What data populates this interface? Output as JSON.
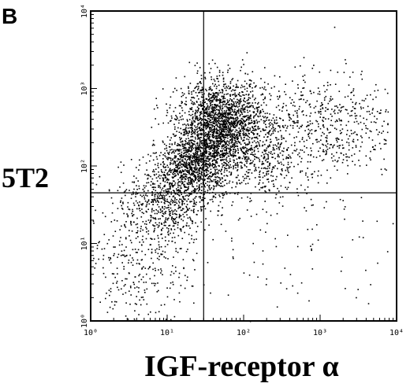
{
  "panel_label": "B",
  "chart_data": {
    "type": "scatter",
    "title": "",
    "xlabel": "IGF-receptor α",
    "ylabel": "5T2",
    "xscale": "log",
    "yscale": "log",
    "xlim": [
      1,
      10000
    ],
    "ylim": [
      1,
      10000
    ],
    "x_ticks": [
      "10⁰",
      "10¹",
      "10²",
      "10³",
      "10⁴"
    ],
    "y_ticks": [
      "10⁰",
      "10¹",
      "10²",
      "10³",
      "10⁴"
    ],
    "quadrant_gates": {
      "x": 30,
      "y": 45
    },
    "grid": false,
    "legend": "none",
    "marker_color": "#000000",
    "populations": [
      {
        "center_x": 50,
        "center_y": 350,
        "spread_log_x": 0.28,
        "spread_log_y": 0.28,
        "count": 1900
      },
      {
        "center_x": 22,
        "center_y": 110,
        "spread_log_x": 0.22,
        "spread_log_y": 0.22,
        "count": 1000
      },
      {
        "center_x": 10,
        "center_y": 35,
        "spread_log_x": 0.25,
        "spread_log_y": 0.28,
        "count": 600
      },
      {
        "center_x": 4,
        "center_y": 6,
        "spread_log_x": 0.35,
        "spread_log_y": 0.5,
        "count": 380
      },
      {
        "center_x": 1000,
        "center_y": 350,
        "spread_log_x": 0.5,
        "spread_log_y": 0.35,
        "count": 600
      },
      {
        "center_x": 150,
        "center_y": 120,
        "spread_log_x": 0.35,
        "spread_log_y": 0.3,
        "count": 450
      },
      {
        "center_x": 400,
        "center_y": 8,
        "spread_log_x": 0.8,
        "spread_log_y": 0.6,
        "count": 90
      }
    ]
  }
}
